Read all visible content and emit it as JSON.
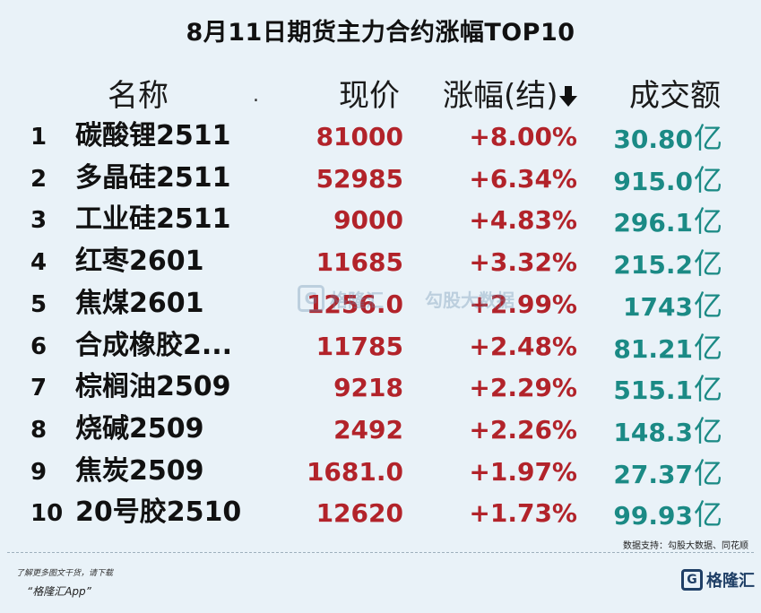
{
  "chart_data": {
    "type": "table",
    "title": "8月11日期货主力合约涨幅TOP10",
    "columns": {
      "name": "名称",
      "dot": ".",
      "price": "现价",
      "change": "涨幅(结)",
      "volume": "成交额"
    },
    "rows": [
      {
        "rank": "1",
        "name": "碳酸锂2511",
        "price": "81000",
        "change": "+8.00%",
        "volume": "30.80",
        "unit": "亿"
      },
      {
        "rank": "2",
        "name": "多晶硅2511",
        "price": "52985",
        "change": "+6.34%",
        "volume": "915.0",
        "unit": "亿"
      },
      {
        "rank": "3",
        "name": "工业硅2511",
        "price": "9000",
        "change": "+4.83%",
        "volume": "296.1",
        "unit": "亿"
      },
      {
        "rank": "4",
        "name": "红枣2601",
        "price": "11685",
        "change": "+3.32%",
        "volume": "215.2",
        "unit": "亿"
      },
      {
        "rank": "5",
        "name": "焦煤2601",
        "price": "1256.0",
        "change": "+2.99%",
        "volume": "1743",
        "unit": "亿"
      },
      {
        "rank": "6",
        "name": "合成橡胶2...",
        "price": "11785",
        "change": "+2.48%",
        "volume": "81.21",
        "unit": "亿"
      },
      {
        "rank": "7",
        "name": "棕榈油2509",
        "price": "9218",
        "change": "+2.29%",
        "volume": "515.1",
        "unit": "亿"
      },
      {
        "rank": "8",
        "name": "烧碱2509",
        "price": "2492",
        "change": "+2.26%",
        "volume": "148.3",
        "unit": "亿"
      },
      {
        "rank": "9",
        "name": "焦炭2509",
        "price": "1681.0",
        "change": "+1.97%",
        "volume": "27.37",
        "unit": "亿"
      },
      {
        "rank": "10",
        "name": "20号胶2510",
        "price": "12620",
        "change": "+1.73%",
        "volume": "99.93",
        "unit": "亿"
      }
    ],
    "sort_indicator": "down-arrow-icon",
    "colors": {
      "price": "#b2232a",
      "change": "#b2232a",
      "volume": "#1b8a85",
      "background": "#e9f2f8"
    }
  },
  "watermark": {
    "logo": "G",
    "brand": "格隆汇",
    "text": "勾股大数据"
  },
  "footer": {
    "source": "数据支持：勾股大数据、同花顺",
    "note": "了解更多图文干货，请下载",
    "app": "“格隆汇App”",
    "brand_logo": "G",
    "brand_name": "格隆汇"
  }
}
